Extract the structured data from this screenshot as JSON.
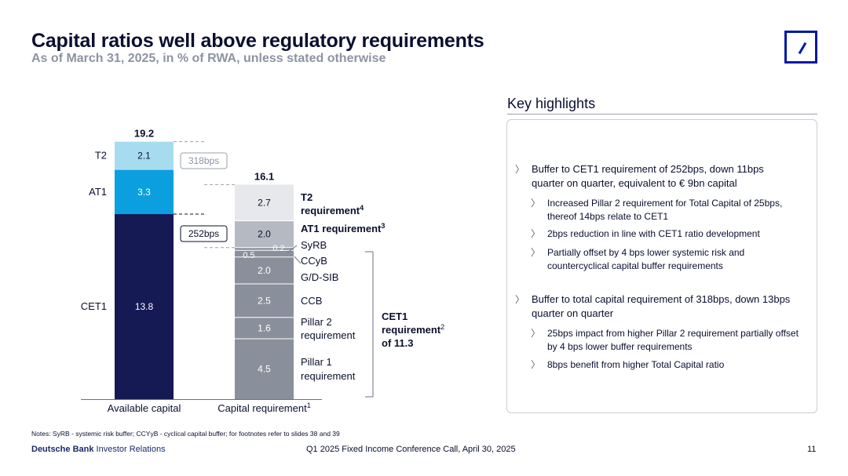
{
  "header": {
    "title": "Capital ratios well above regulatory requirements",
    "subtitle": "As of March 31, 2025, in % of RWA, unless stated otherwise"
  },
  "chart_data": {
    "type": "bar",
    "stacked": true,
    "ylim": [
      0,
      20
    ],
    "categories": [
      "Available capital",
      "Capital requirement"
    ],
    "category_footnotes": [
      "",
      "1"
    ],
    "totals": [
      "19.2",
      "16.1"
    ],
    "colors": {
      "cet1": "#151a54",
      "at1": "#0b9fe0",
      "t2": "#a7dcf0",
      "req_light": "#e6e8ec",
      "req_mid": "#b4b9c2",
      "req_dark": "#8a909b"
    },
    "available": [
      {
        "name": "CET1",
        "value": 13.8,
        "label": "13.8",
        "color_key": "cet1"
      },
      {
        "name": "AT1",
        "value": 3.3,
        "label": "3.3",
        "color_key": "at1"
      },
      {
        "name": "T2",
        "value": 2.1,
        "label": "2.1",
        "color_key": "t2"
      }
    ],
    "requirement": [
      {
        "name": "Pillar 1\nrequirement",
        "value": 4.5,
        "label": "4.5",
        "color_key": "req_dark",
        "bold": false
      },
      {
        "name": "Pillar 2\nrequirement",
        "value": 1.6,
        "label": "1.6",
        "color_key": "req_dark",
        "bold": false
      },
      {
        "name": "CCB",
        "value": 2.5,
        "label": "2.5",
        "color_key": "req_dark",
        "bold": false
      },
      {
        "name": "G/D-SIB",
        "value": 2.0,
        "label": "2.0",
        "color_key": "req_dark",
        "bold": false
      },
      {
        "name": "CCyB",
        "value": 0.5,
        "label": "0.5",
        "color_key": "req_dark",
        "bold": false
      },
      {
        "name": "SyRB",
        "value": 0.2,
        "label": "0.2",
        "color_key": "req_dark",
        "bold": false
      },
      {
        "name": "AT1 requirement",
        "name_sup": "3",
        "value": 2.0,
        "label": "2.0",
        "color_key": "req_mid",
        "bold": true
      },
      {
        "name": "T2\nrequirement",
        "name_sup": "4",
        "value": 2.7,
        "label": "2.7",
        "color_key": "req_light",
        "bold": true
      }
    ],
    "buffers": [
      "318bps",
      "252bps"
    ],
    "cet1_requirement": {
      "lines": [
        "CET1",
        "requirement",
        "of 11.3"
      ],
      "sup": "2"
    }
  },
  "highlights": {
    "title": "Key highlights",
    "items": [
      {
        "level": 1,
        "text": "Buffer to CET1 requirement of 252bps, down 11bps quarter on quarter, equivalent to € 9bn capital"
      },
      {
        "level": 2,
        "text": "Increased Pillar 2 requirement for Total Capital of 25bps, thereof 14bps relate to CET1"
      },
      {
        "level": 2,
        "text": "2bps reduction in line with CET1 ratio development"
      },
      {
        "level": 2,
        "text": "Partially offset by 4 bps lower systemic risk and countercyclical capital buffer requirements"
      },
      {
        "level": 1,
        "text": "Buffer to total capital requirement of 318bps, down 13bps quarter on quarter"
      },
      {
        "level": 2,
        "text": "25bps impact from higher Pillar 2 requirement partially offset by 4 bps lower buffer requirements"
      },
      {
        "level": 2,
        "text": "8bps benefit from higher Total Capital ratio"
      }
    ],
    "marker": "〉"
  },
  "footer": {
    "notes": "Notes: SyRB - systemic risk buffer; CCYyB - cyclical capital buffer; for footnotes refer to slides 38 and 39",
    "brand_bold": "Deutsche Bank",
    "brand_rest": " Investor Relations",
    "center": "Q1 2025 Fixed Income Conference Call, April 30, 2025",
    "page": "11"
  }
}
